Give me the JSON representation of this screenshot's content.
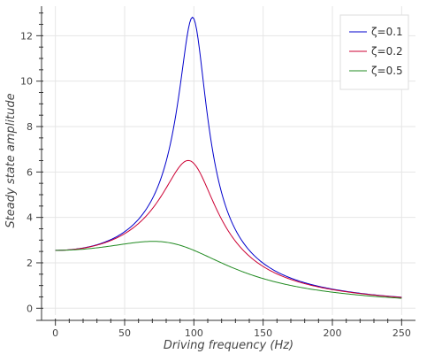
{
  "chart_data": {
    "type": "line",
    "xlabel": "Driving frequency (Hz)",
    "ylabel": "Steady state amplitude",
    "xlim": [
      -10,
      260
    ],
    "ylim": [
      -0.3,
      13.3
    ],
    "x_ticks": [
      0,
      50,
      100,
      150,
      200,
      250
    ],
    "y_ticks": [
      0,
      2,
      4,
      6,
      8,
      10,
      12
    ],
    "grid": true,
    "legend_position": "top-right",
    "natural_frequency_hz": 100,
    "static_amplitude": 2.55,
    "series": [
      {
        "name": "ζ=0.1",
        "color": "#0000cc",
        "zeta": 0.1
      },
      {
        "name": "ζ=0.2",
        "color": "#cc0033",
        "zeta": 0.2
      },
      {
        "name": "ζ=0.5",
        "color": "#228b22",
        "zeta": 0.5
      }
    ]
  }
}
